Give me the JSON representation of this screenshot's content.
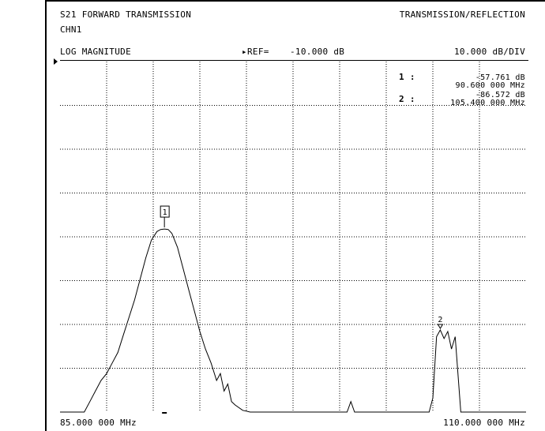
{
  "header": {
    "title_left": "S21 FORWARD TRANSMISSION",
    "title_right": "TRANSMISSION/REFLECTION",
    "channel": "CHN1",
    "format": "LOG MAGNITUDE",
    "ref_label": "REF=",
    "ref_value": "-10.000 dB",
    "scale": "10.000 dB/DIV"
  },
  "markers": [
    {
      "id": "1",
      "label": "1 :",
      "value": "-57.761 dB",
      "freq": "90.600 000 MHz"
    },
    {
      "id": "2",
      "label": "2 :",
      "value": "-86.572 dB",
      "freq": "105.400 000 MHz"
    }
  ],
  "footer": {
    "start": "85.000 000 MHz",
    "stop": "110.000 000 MHz"
  },
  "chart_data": {
    "type": "line",
    "title": "S21 FORWARD TRANSMISSION",
    "xlabel": "",
    "ylabel": "",
    "xlim": [
      85.0,
      110.0
    ],
    "ylim": [
      -110,
      -10
    ],
    "x_unit": "MHz",
    "y_unit": "dB",
    "grid": true,
    "series": [
      {
        "x": [
          85.0,
          86.3,
          86.6,
          86.9,
          87.2,
          87.5,
          87.8,
          88.1,
          88.4,
          88.7,
          89.0,
          89.3,
          89.6,
          89.9,
          90.2,
          90.4,
          90.6,
          90.8,
          91.0,
          91.3,
          91.6,
          91.9,
          92.2,
          92.5,
          92.8,
          93.1,
          93.4,
          93.6,
          93.8,
          94.0,
          94.2,
          94.4,
          94.8,
          95.2,
          100.4,
          100.6,
          100.8,
          101.0,
          104.8,
          105.0,
          105.2,
          105.4,
          105.6,
          105.8,
          106.0,
          106.2,
          106.5,
          110.0
        ],
        "y": [
          -110,
          -110,
          -107,
          -104,
          -101,
          -99,
          -96,
          -93,
          -88,
          -83,
          -78,
          -72,
          -66,
          -61,
          -58.5,
          -57.9,
          -57.761,
          -57.9,
          -59,
          -63,
          -69,
          -75,
          -81,
          -87,
          -92,
          -96,
          -101,
          -99,
          -104,
          -102,
          -107,
          -108,
          -109.5,
          -110,
          -110,
          -107,
          -110,
          -110,
          -110,
          -106,
          -88.5,
          -86.572,
          -89,
          -87,
          -92,
          -88.5,
          -110,
          -110
        ]
      }
    ],
    "marker_points": [
      {
        "id": "1",
        "x": 90.6,
        "y": -57.761
      },
      {
        "id": "2",
        "x": 105.4,
        "y": -86.572
      }
    ]
  }
}
